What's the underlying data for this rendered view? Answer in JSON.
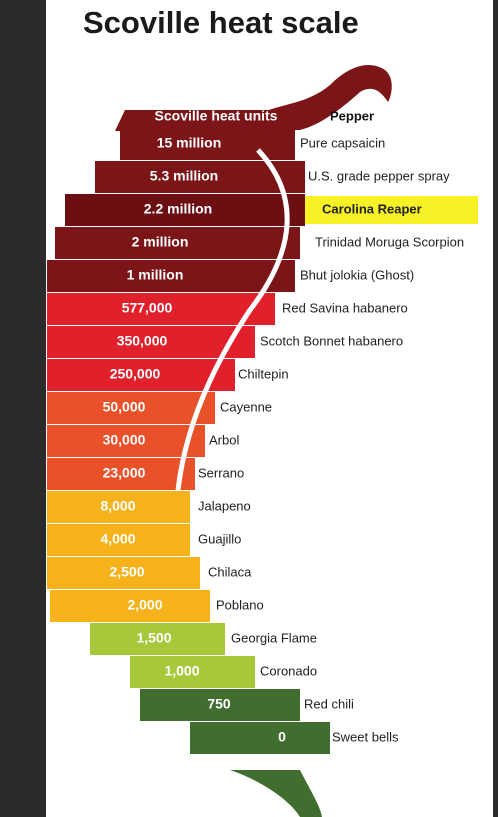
{
  "title": "Scoville heat scale",
  "header": {
    "units": "Scoville heat units",
    "pepper": "Pepper"
  },
  "rows": [
    {
      "heat": "15 million",
      "pepper": "Pure capsaicin"
    },
    {
      "heat": "5.3 million",
      "pepper": "U.S. grade pepper spray"
    },
    {
      "heat": "2.2 million",
      "pepper": "Carolina Reaper"
    },
    {
      "heat": "2 million",
      "pepper": "Trinidad Moruga Scorpion"
    },
    {
      "heat": "1 million",
      "pepper": "Bhut jolokia (Ghost)"
    },
    {
      "heat": "577,000",
      "pepper": "Red Savina habanero"
    },
    {
      "heat": "350,000",
      "pepper": "Scotch Bonnet habanero"
    },
    {
      "heat": "250,000",
      "pepper": "Chiltepin"
    },
    {
      "heat": "50,000",
      "pepper": "Cayenne"
    },
    {
      "heat": "30,000",
      "pepper": "Arbol"
    },
    {
      "heat": "23,000",
      "pepper": "Serrano"
    },
    {
      "heat": "8,000",
      "pepper": "Jalapeno"
    },
    {
      "heat": "4,000",
      "pepper": "Guajillo"
    },
    {
      "heat": "2,500",
      "pepper": "Chilaca"
    },
    {
      "heat": "2,000",
      "pepper": "Poblano"
    },
    {
      "heat": "1,500",
      "pepper": "Georgia Flame"
    },
    {
      "heat": "1,000",
      "pepper": "Coronado"
    },
    {
      "heat": "750",
      "pepper": "Red chili"
    },
    {
      "heat": "0",
      "pepper": "Sweet bells"
    }
  ]
}
